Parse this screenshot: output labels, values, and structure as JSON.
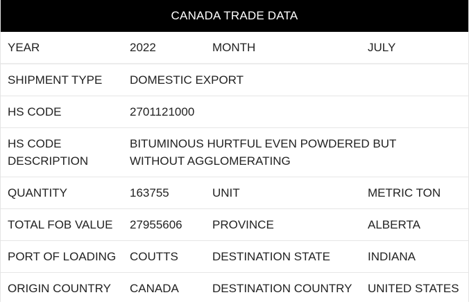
{
  "title": "CANADA TRADE DATA",
  "rows": [
    {
      "label1": "YEAR",
      "value1": "2022",
      "label2": "MONTH",
      "value2": "JULY"
    },
    {
      "label1": "SHIPMENT TYPE",
      "value1": "DOMESTIC EXPORT"
    },
    {
      "label1": "HS CODE",
      "value1": "2701121000"
    },
    {
      "label1": "HS CODE DESCRIPTION",
      "value1": "BITUMINOUS HURTFUL EVEN POWDERED BUT WITHOUT AGGLOMERATING"
    },
    {
      "label1": "QUANTITY",
      "value1": "163755",
      "label2": "UNIT",
      "value2": "METRIC TON"
    },
    {
      "label1": "TOTAL FOB VALUE",
      "value1": "27955606",
      "label2": "PROVINCE",
      "value2": "ALBERTA"
    },
    {
      "label1": "PORT OF LOADING",
      "value1": "COUTTS",
      "label2": "DESTINATION STATE",
      "value2": "INDIANA"
    },
    {
      "label1": "ORIGIN COUNTRY",
      "value1": "CANADA",
      "label2": "DESTINATION COUNTRY",
      "value2": "UNITED STATES"
    }
  ]
}
